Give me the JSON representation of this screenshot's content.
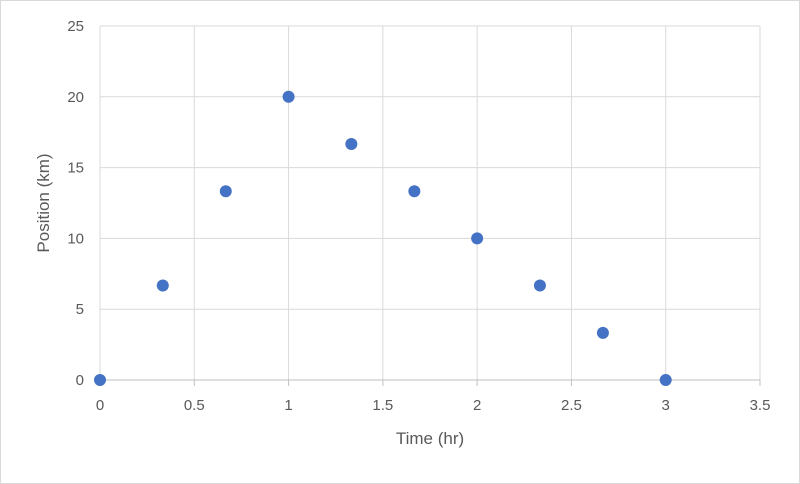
{
  "chart_data": {
    "type": "scatter",
    "title": "",
    "xlabel": "Time (hr)",
    "ylabel": "Position (km)",
    "xlim": [
      0,
      3.5
    ],
    "ylim": [
      0,
      25
    ],
    "xticks": [
      "0",
      "0.5",
      "1",
      "1.5",
      "2",
      "2.5",
      "3",
      "3.5"
    ],
    "yticks": [
      "0",
      "5",
      "10",
      "15",
      "20",
      "25"
    ],
    "grid": true,
    "legend": "none",
    "series": [
      {
        "color": "#4472c4",
        "x": [
          0,
          0.333,
          0.667,
          1.0,
          1.333,
          1.667,
          2.0,
          2.333,
          2.667,
          3.0
        ],
        "y": [
          0,
          6.67,
          13.33,
          20.0,
          16.67,
          13.33,
          10.0,
          6.67,
          3.33,
          0
        ]
      }
    ]
  }
}
